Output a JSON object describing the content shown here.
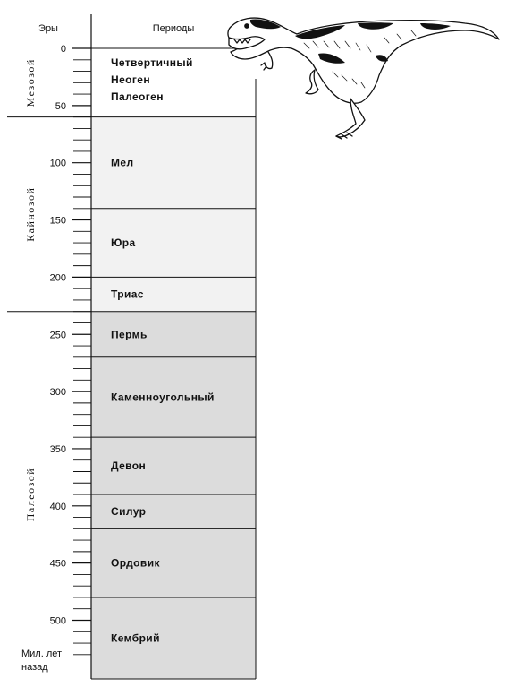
{
  "chart_data": {
    "type": "timeline",
    "header": {
      "eras_label": "Эры",
      "periods_label": "Периоды"
    },
    "axis": {
      "unit_label_line1": "Мил. лет",
      "unit_label_line2": "назад",
      "range": [
        0,
        550
      ],
      "major_ticks": [
        0,
        50,
        100,
        150,
        200,
        250,
        300,
        350,
        400,
        450,
        500
      ],
      "minor_step": 10
    },
    "eras": [
      {
        "name": "Мезозой",
        "start": 0,
        "end": 60
      },
      {
        "name": "Кайнозой",
        "start": 60,
        "end": 230
      },
      {
        "name": "Палеозой",
        "start": 230,
        "end": 550
      }
    ],
    "periods": [
      {
        "name": "Четвертичный",
        "start": 0,
        "end": 60,
        "fill": "#ffffff"
      },
      {
        "name": "Неоген",
        "start": 0,
        "end": 60,
        "fill": "#ffffff"
      },
      {
        "name": "Палеоген",
        "start": 0,
        "end": 60,
        "fill": "#ffffff"
      },
      {
        "name": "Мел",
        "start": 60,
        "end": 140,
        "fill": "#f2f2f2"
      },
      {
        "name": "Юра",
        "start": 140,
        "end": 200,
        "fill": "#f2f2f2"
      },
      {
        "name": "Триас",
        "start": 200,
        "end": 230,
        "fill": "#f2f2f2"
      },
      {
        "name": "Пермь",
        "start": 230,
        "end": 270,
        "fill": "#dcdcdc"
      },
      {
        "name": "Каменноугольный",
        "start": 270,
        "end": 340,
        "fill": "#dcdcdc"
      },
      {
        "name": "Девон",
        "start": 340,
        "end": 390,
        "fill": "#dcdcdc"
      },
      {
        "name": "Силур",
        "start": 390,
        "end": 420,
        "fill": "#dcdcdc"
      },
      {
        "name": "Ордовик",
        "start": 420,
        "end": 480,
        "fill": "#dcdcdc"
      },
      {
        "name": "Кембрий",
        "start": 480,
        "end": 550,
        "fill": "#dcdcdc"
      }
    ],
    "illustration": "tyrannosaurus"
  }
}
